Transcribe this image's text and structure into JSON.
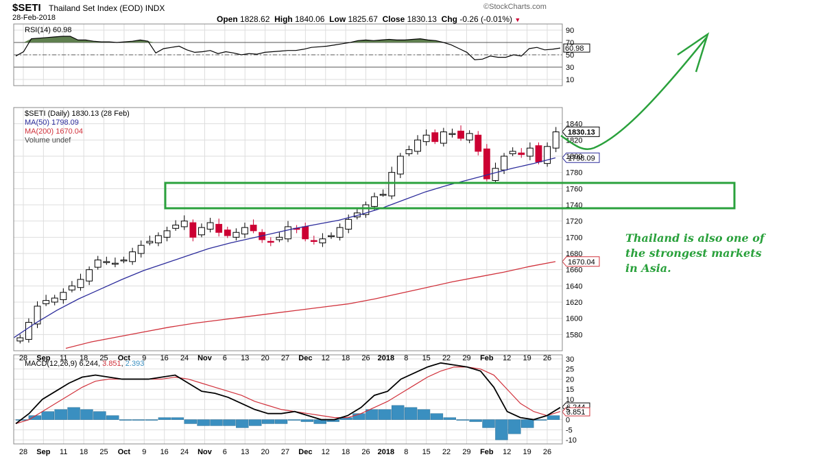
{
  "header": {
    "symbol": "$SETI",
    "name": "Thailand Set Index (EOD)",
    "exchange": "INDX",
    "date": "28-Feb-2018",
    "brand": "©StockCharts.com",
    "open_label": "Open",
    "open": "1828.62",
    "high_label": "High",
    "high": "1840.06",
    "low_label": "Low",
    "low": "1825.67",
    "close_label": "Close",
    "close": "1830.13",
    "chg_label": "Chg",
    "chg": "-0.26 (-0.01%)",
    "chg_marker": "▼"
  },
  "colors": {
    "up": "#000000",
    "down": "#cc0033",
    "ma50": "#2b2b9b",
    "ma200": "#d0303a",
    "rsi_fill": "#5f7f4f",
    "macd_hist": "#3a8fc0",
    "annotation": "#2aa13c",
    "grid": "#dddddd"
  },
  "chart_data": [
    {
      "type": "line",
      "panel": "RSI",
      "legend": "RSI(14) 60.98",
      "last_value": "60.98",
      "ylim": [
        0,
        100
      ],
      "yticks": [
        "10",
        "30",
        "50",
        "70",
        "90"
      ],
      "reference_lines": [
        30,
        50,
        70
      ],
      "values": [
        48,
        55,
        76,
        77,
        78,
        79,
        80,
        80,
        74,
        74,
        72,
        71,
        71,
        70,
        71,
        72,
        74,
        72,
        53,
        60,
        62,
        64,
        58,
        54,
        55,
        57,
        52,
        55,
        53,
        50,
        52,
        51,
        54,
        55,
        56,
        57,
        57,
        59,
        62,
        63,
        64,
        66,
        68,
        70,
        73,
        74,
        73,
        74,
        75,
        74,
        74,
        75,
        76,
        74,
        73,
        70,
        66,
        60,
        54,
        42,
        43,
        48,
        46,
        46,
        50,
        48,
        60,
        62,
        58,
        59,
        61
      ]
    },
    {
      "type": "candlestick",
      "panel": "price",
      "legend": "$SETI (Daily) 1830.13 (28 Feb)",
      "last_value": "1830.13",
      "ylim": [
        1560,
        1860
      ],
      "yticks": [
        "1580",
        "1600",
        "1620",
        "1640",
        "1660",
        "1680",
        "1700",
        "1720",
        "1740",
        "1760",
        "1780",
        "1800",
        "1820",
        "1840"
      ],
      "x_tick_labels": [
        "28",
        "Sep",
        "11",
        "18",
        "25",
        "Oct",
        "9",
        "16",
        "24",
        "Nov",
        "6",
        "13",
        "20",
        "27",
        "Dec",
        "12",
        "18",
        "26",
        "2018",
        "8",
        "15",
        "22",
        "29",
        "Feb",
        "12",
        "19",
        "26"
      ],
      "closes": [
        1576,
        1595,
        1615,
        1622,
        1625,
        1632,
        1640,
        1648,
        1660,
        1672,
        1670,
        1668,
        1672,
        1682,
        1690,
        1695,
        1702,
        1708,
        1715,
        1720,
        1700,
        1712,
        1718,
        1706,
        1702,
        1706,
        1712,
        1708,
        1697,
        1694,
        1700,
        1713,
        1710,
        1698,
        1695,
        1698,
        1702,
        1712,
        1722,
        1730,
        1740,
        1750,
        1753,
        1780,
        1800,
        1808,
        1820,
        1826,
        1818,
        1830,
        1828,
        1822,
        1828,
        1806,
        1772,
        1785,
        1800,
        1806,
        1802,
        1810,
        1793,
        1812,
        1830
      ],
      "series": [
        {
          "name": "MA(50) 1798.09",
          "last_value": "1798.09",
          "values": [
            1576,
            1594,
            1610,
            1624,
            1636,
            1648,
            1659,
            1668,
            1677,
            1686,
            1693,
            1699,
            1705,
            1711,
            1716,
            1721,
            1728,
            1736,
            1746,
            1756,
            1764,
            1771,
            1778,
            1785,
            1791,
            1798
          ]
        },
        {
          "name": "MA(200) 1670.04",
          "last_value": "1670.04",
          "values": [
            1563,
            1571,
            1577,
            1583,
            1589,
            1594,
            1598,
            1602,
            1606,
            1610,
            1614,
            1618,
            1624,
            1631,
            1638,
            1645,
            1651,
            1657,
            1664,
            1670
          ]
        },
        {
          "name": "Volume undef"
        }
      ]
    },
    {
      "type": "line",
      "panel": "MACD",
      "legend_prefix": "MACD(12,26,9)",
      "macd_value": "6.244",
      "signal_value": "3.851",
      "hist_value": "2.393",
      "ylim": [
        -12,
        32
      ],
      "yticks": [
        "-10",
        "-5",
        "0",
        "5",
        "10",
        "15",
        "20",
        "25",
        "30"
      ],
      "x_tick_labels": [
        "28",
        "Sep",
        "11",
        "18",
        "25",
        "Oct",
        "9",
        "16",
        "24",
        "Nov",
        "6",
        "13",
        "20",
        "27",
        "Dec",
        "12",
        "18",
        "26",
        "2018",
        "8",
        "15",
        "22",
        "29",
        "Feb",
        "12",
        "19",
        "26"
      ],
      "series": [
        {
          "name": "MACD",
          "values": [
            -2,
            3,
            10,
            14,
            18,
            21,
            22,
            21,
            20,
            20,
            20,
            21,
            22,
            18,
            14,
            13,
            11,
            8,
            5,
            3,
            3,
            4,
            2,
            0,
            0,
            2,
            6,
            12,
            14,
            20,
            23,
            26,
            28,
            27,
            26,
            24,
            16,
            4,
            1,
            0,
            2,
            6
          ]
        },
        {
          "name": "Signal",
          "values": [
            -2,
            0,
            4,
            8,
            12,
            16,
            19,
            20,
            20,
            20,
            20,
            20,
            21,
            20,
            18,
            16,
            14,
            12,
            9,
            7,
            5,
            4,
            3,
            2,
            1,
            1,
            3,
            6,
            9,
            13,
            17,
            21,
            24,
            26,
            26,
            25,
            22,
            15,
            8,
            4,
            2,
            4
          ]
        },
        {
          "name": "Histogram",
          "values": [
            0,
            2,
            4,
            5,
            6,
            5,
            4,
            2,
            0,
            0,
            0,
            1,
            1,
            -2,
            -3,
            -3,
            -3,
            -4,
            -3,
            -2,
            -2,
            0,
            -1,
            -2,
            -1,
            1,
            3,
            5,
            5,
            7,
            6,
            5,
            3,
            1,
            0,
            -1,
            -4,
            -10,
            -7,
            -4,
            0,
            2
          ]
        }
      ]
    }
  ],
  "annotation": {
    "lines": [
      "Thailand is also one of",
      "the strongest markets",
      "in Asia."
    ]
  }
}
